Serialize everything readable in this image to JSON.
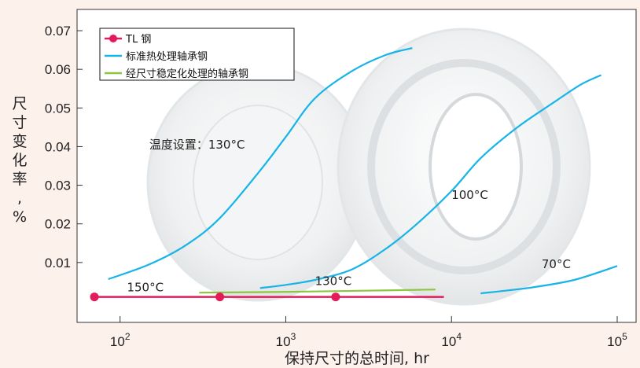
{
  "chart_data": {
    "type": "line",
    "title": "",
    "xlabel": "保持尺寸的总时间, hr",
    "ylabel": "尺寸变化率, %",
    "x_scale": "log",
    "xlim": [
      55,
      130000
    ],
    "ylim": [
      -0.0055,
      0.0755
    ],
    "x_ticks": [
      {
        "value": 100,
        "base": "10",
        "exp": "2"
      },
      {
        "value": 1000,
        "base": "10",
        "exp": "3"
      },
      {
        "value": 10000,
        "base": "10",
        "exp": "4"
      },
      {
        "value": 100000,
        "base": "10",
        "exp": "5"
      }
    ],
    "y_ticks": [
      {
        "value": 0.01,
        "label": "0.01"
      },
      {
        "value": 0.02,
        "label": "0.02"
      },
      {
        "value": 0.03,
        "label": "0.03"
      },
      {
        "value": 0.04,
        "label": "0.04"
      },
      {
        "value": 0.05,
        "label": "0.05"
      },
      {
        "value": 0.06,
        "label": "0.06"
      },
      {
        "value": 0.07,
        "label": "0.07"
      }
    ],
    "grid": false,
    "legend_position": "top-left",
    "series": [
      {
        "name": "TL 钢",
        "color": "#e31b5a",
        "marker": "circle",
        "x": [
          70,
          400,
          2000,
          9000
        ],
        "y": [
          0.0011,
          0.0011,
          0.0011,
          0.0011
        ],
        "marker_x": [
          70,
          400,
          2000
        ]
      },
      {
        "name": "标准热处理轴承钢",
        "color": "#17b4e8",
        "curves": [
          {
            "x": [
              85,
              150,
              250,
              400,
              700,
              1000,
              1500,
              2500,
              4000,
              5800
            ],
            "y": [
              0.0057,
              0.0095,
              0.0145,
              0.0215,
              0.0338,
              0.0425,
              0.0525,
              0.0595,
              0.0637,
              0.0655
            ]
          },
          {
            "x": [
              700,
              1000,
              1500,
              2500,
              4000,
              6000,
              10000,
              15000,
              25000,
              40000,
              60000,
              80000
            ],
            "y": [
              0.0034,
              0.0042,
              0.0055,
              0.0082,
              0.0135,
              0.0195,
              0.0285,
              0.037,
              0.045,
              0.051,
              0.056,
              0.0585
            ]
          },
          {
            "x": [
              15000,
              30000,
              55000,
              100000
            ],
            "y": [
              0.002,
              0.0035,
              0.0055,
              0.0091
            ]
          }
        ]
      },
      {
        "name": "经尺寸稳定化处理的轴承钢",
        "color": "#8cc63f",
        "curves": [
          {
            "x": [
              300,
              1000,
              3000,
              8000
            ],
            "y": [
              0.0022,
              0.0024,
              0.0027,
              0.003
            ]
          }
        ]
      }
    ],
    "annotations": [
      {
        "text": "温度设置：130°C",
        "x": 150,
        "y": 0.0395
      },
      {
        "text": "100°C",
        "x": 10000,
        "y": 0.0265
      },
      {
        "text": "70°C",
        "x": 35000,
        "y": 0.0085
      },
      {
        "text": "150°C",
        "x": 110,
        "y": 0.0025
      },
      {
        "text": "130°C",
        "x": 1500,
        "y": 0.0042
      }
    ]
  }
}
